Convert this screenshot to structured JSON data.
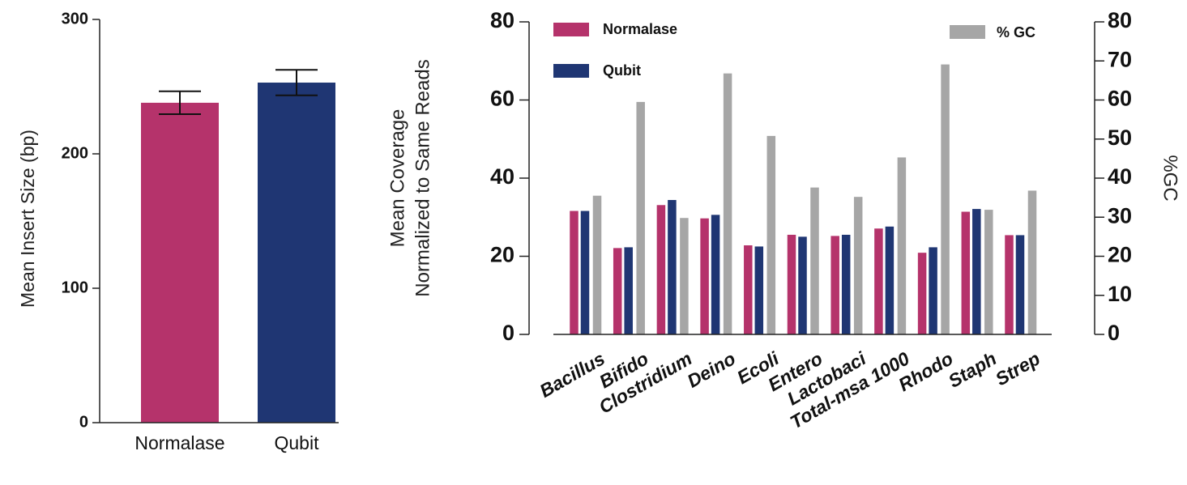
{
  "chart_data": [
    {
      "type": "bar",
      "title": "",
      "xlabel": "",
      "ylabel": "Mean Insert Size (bp)",
      "ylim": [
        0,
        300
      ],
      "yticks": [
        0,
        100,
        200,
        300
      ],
      "categories": [
        "Normalase",
        "Qubit"
      ],
      "values": [
        238,
        253
      ],
      "error": [
        8.5,
        9.5
      ],
      "colors": [
        "#b5336b",
        "#1f3673"
      ],
      "grid": false,
      "legend": "none"
    },
    {
      "type": "bar",
      "title": "",
      "xlabel": "",
      "ylabel_lines": [
        "Mean Coverage",
        "Normalized to Same Reads"
      ],
      "y2label": "%GC",
      "ylim": [
        0,
        80
      ],
      "yticks": [
        0,
        20,
        40,
        60,
        80
      ],
      "y2lim": [
        0,
        80
      ],
      "y2ticks": [
        0,
        10,
        20,
        30,
        40,
        50,
        60,
        70,
        80
      ],
      "categories": [
        "Bacillus",
        "Bifido",
        "Clostridium",
        "Deino",
        "Ecoli",
        "Entero",
        "Lactobaci",
        "Total-msa 1000",
        "Rhodo",
        "Staph",
        "Strep"
      ],
      "series": [
        {
          "name": "Normalase",
          "axis": "left",
          "color": "#b5336b",
          "values": [
            31.6,
            22.1,
            33.1,
            29.7,
            22.8,
            25.5,
            25.2,
            27.1,
            20.9,
            31.4,
            25.4
          ]
        },
        {
          "name": "Qubit",
          "axis": "left",
          "color": "#1f3673",
          "values": [
            31.6,
            22.3,
            34.4,
            30.6,
            22.5,
            25.0,
            25.5,
            27.6,
            22.3,
            32.1,
            25.4
          ]
        },
        {
          "name": "% GC",
          "axis": "right",
          "color": "#a6a6a6",
          "values": [
            35.5,
            59.5,
            29.8,
            66.8,
            50.8,
            37.6,
            35.2,
            45.3,
            69.1,
            31.9,
            36.8
          ]
        }
      ],
      "grid": false,
      "legend": "top"
    }
  ]
}
